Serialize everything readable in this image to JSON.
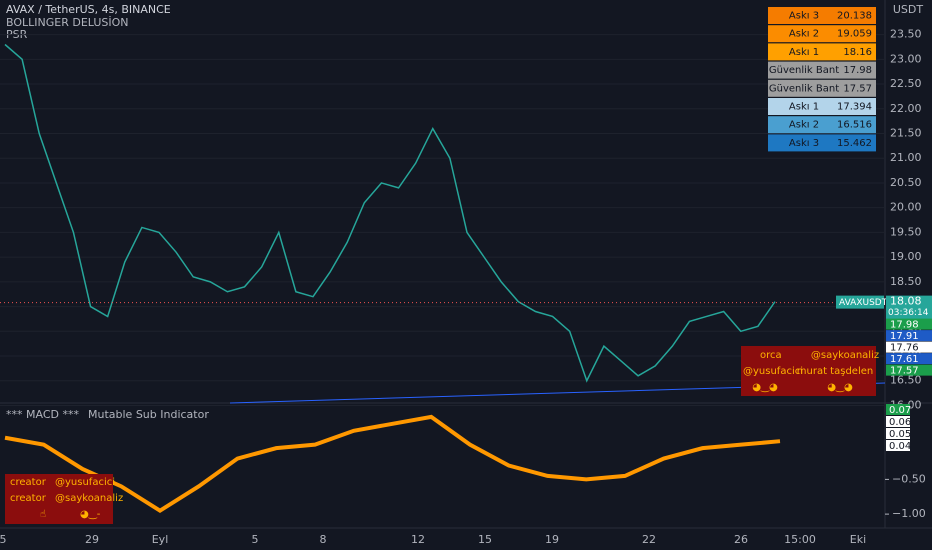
{
  "header": {
    "symbol": "AVAX / TetherUS, 4s, BINANCE",
    "indicator1": "BOLLINGER DELUSİON",
    "indicator2": "PSR",
    "currency": "USDT"
  },
  "price": {
    "values": [
      23.3,
      23,
      21.5,
      20.5,
      19.5,
      18,
      17.8,
      18.9,
      19.6,
      19.5,
      19.1,
      18.6,
      18.5,
      18.3,
      18.4,
      18.8,
      19.5,
      18.3,
      18.2,
      18.7,
      19.3,
      20.1,
      20.5,
      20.4,
      20.9,
      21.6,
      21,
      19.5,
      19,
      18.5,
      18.1,
      17.9,
      17.8,
      17.5,
      16.5,
      17.2,
      16.9,
      16.6,
      16.8,
      17.2,
      17.7,
      17.8,
      17.9,
      17.5,
      17.6,
      18.1
    ],
    "ylim": [
      16.05,
      24.2
    ],
    "yticks": [
      {
        "value": 23.5,
        "label": "23.50"
      },
      {
        "value": 23,
        "label": "23.00"
      },
      {
        "value": 22.5,
        "label": "22.50"
      },
      {
        "value": 22,
        "label": "22.00"
      },
      {
        "value": 21.5,
        "label": "21.50"
      },
      {
        "value": 21,
        "label": "21.00"
      },
      {
        "value": 20.5,
        "label": "20.50"
      },
      {
        "value": 20,
        "label": "20.00"
      },
      {
        "value": 19.5,
        "label": "19.50"
      },
      {
        "value": 19,
        "label": "19.00"
      },
      {
        "value": 18.5,
        "label": "18.50"
      },
      {
        "value": 18,
        "label": "18.00"
      },
      {
        "value": 17.5,
        "label": "17.50"
      },
      {
        "value": 17,
        "label": "17.00"
      },
      {
        "value": 16.5,
        "label": "16.50"
      },
      {
        "value": 16,
        "label": "16.00"
      }
    ]
  },
  "levels": {
    "rows": [
      {
        "label": "Askı 3",
        "value": 20.138,
        "color": "#f57c00"
      },
      {
        "label": "Askı 2",
        "value": 19.059,
        "color": "#fb8c00"
      },
      {
        "label": "Askı 1",
        "value": 18.16,
        "color": "#ffa000"
      },
      {
        "label": "Güvenlik Bant",
        "value": 17.98,
        "color": "#9e9e9e"
      },
      {
        "label": "Güvenlik Bant",
        "value": 17.57,
        "color": "#9e9e9e"
      },
      {
        "label": "Askı 1",
        "value": 17.394,
        "color": "#b3d4ea"
      },
      {
        "label": "Askı 2",
        "value": 16.516,
        "color": "#4a9fd0"
      },
      {
        "label": "Askı 3",
        "value": 15.462,
        "color": "#1e78c2"
      }
    ]
  },
  "tags": {
    "symbol": "AVAXUSDT",
    "last": 18.08,
    "countdown": "03:36:14",
    "items": [
      {
        "value": 17.98,
        "color": "#1b9e4b"
      },
      {
        "value": 17.91,
        "color": "#1e5bc6"
      },
      {
        "value": 17.76,
        "color": "#ffffff"
      },
      {
        "value": 17.61,
        "color": "#1e5bc6"
      },
      {
        "value": 17.57,
        "color": "#1b9e4b"
      }
    ]
  },
  "box1": {
    "items": [
      "orca",
      "@saykoanaliz",
      "@yusufacici",
      "murat taşdelen",
      "◕‿◕",
      "◕‿◕"
    ]
  },
  "macd": {
    "title": "*** MACD ***",
    "subtitle": "Mutable Sub Indicator",
    "values": [
      0.1,
      0,
      -0.35,
      -0.6,
      -0.95,
      -0.6,
      -0.2,
      -0.05,
      0,
      0.2,
      0.3,
      0.4,
      0,
      -0.3,
      -0.45,
      -0.5,
      -0.45,
      -0.2,
      -0.05,
      0,
      0.05
    ],
    "ylim": [
      -1.2,
      0.6
    ],
    "yticks": [
      {
        "value": -0.5,
        "label": "−0.50"
      },
      {
        "value": -1,
        "label": "−1.00"
      }
    ],
    "tags": [
      0.07,
      0.06,
      0.05,
      0.04
    ]
  },
  "box2": {
    "items": [
      "creator",
      "@yusufacici",
      "creator",
      "@saykoanaliz",
      "☝",
      "◕‿-"
    ]
  },
  "xaxis": {
    "labels": [
      "5",
      "29",
      "Eyl",
      "5",
      "8",
      "12",
      "15",
      "19",
      "22",
      "26",
      "15:00",
      "Eki"
    ]
  }
}
